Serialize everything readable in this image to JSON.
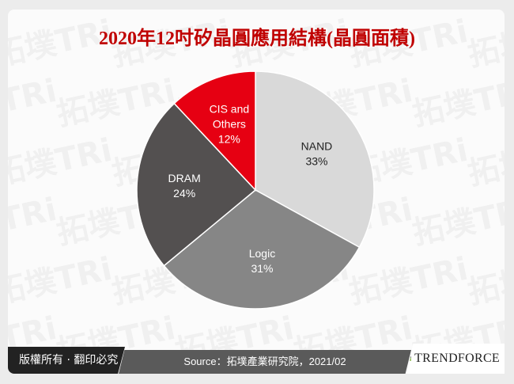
{
  "title": "2020年12吋矽晶圓應用結構(晶圓面積)",
  "chart_data": {
    "type": "pie",
    "title": "2020年12吋矽晶圓應用結構(晶圓面積)",
    "start_angle": "12 o'clock",
    "direction": "clockwise",
    "slices": [
      {
        "label": "NAND",
        "value": 33,
        "value_label": "33%",
        "color": "#d9d9d9",
        "text_color": "#222222"
      },
      {
        "label": "Logic",
        "value": 31,
        "value_label": "31%",
        "color": "#868686",
        "text_color": "#ffffff"
      },
      {
        "label": "DRAM",
        "value": 24,
        "value_label": "24%",
        "color": "#535050",
        "text_color": "#ffffff"
      },
      {
        "label": "CIS and Others",
        "value": 12,
        "value_label": "12%",
        "color": "#e60012",
        "text_color": "#ffffff"
      }
    ]
  },
  "footer": {
    "copyright": "版權所有 · 翻印必究",
    "source": "Source：拓墣產業研究院，2021/02",
    "brand": "TrendForce"
  },
  "watermark": "拓墣TRi"
}
